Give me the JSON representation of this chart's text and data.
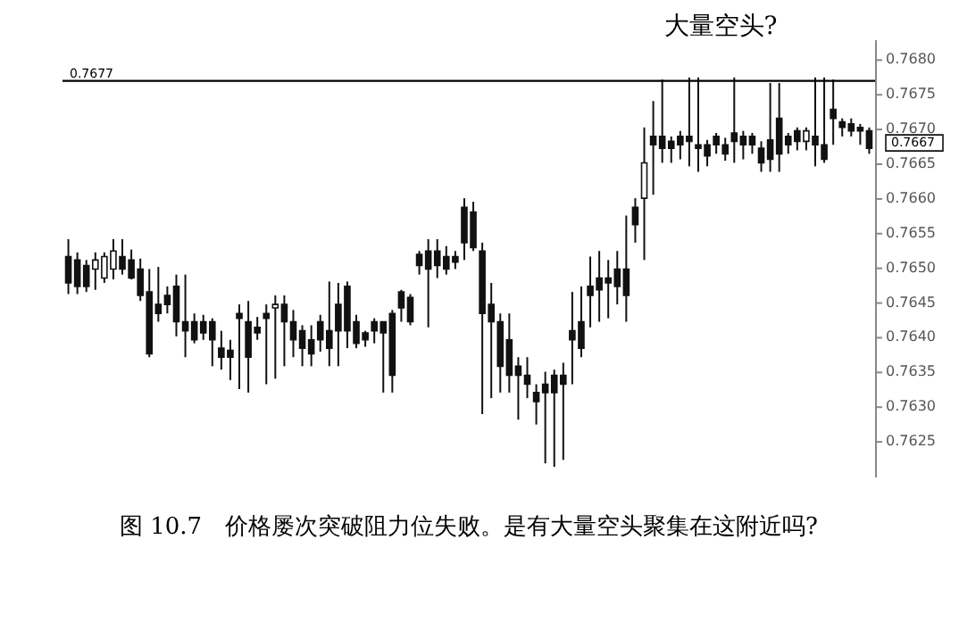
{
  "chart_data": {
    "type": "candlestick",
    "title": "图 10.7　价格屡次突破阻力位失败。是有大量空头聚集在这附近吗?",
    "color": "#111111",
    "categories": [
      null,
      null,
      null,
      null,
      null,
      null,
      null,
      null,
      null,
      null,
      null,
      null,
      null,
      null,
      null,
      null,
      null,
      null,
      null,
      null,
      null,
      null,
      null,
      null,
      null,
      null,
      null,
      null,
      null,
      null,
      null,
      null,
      null,
      null,
      null,
      null,
      null,
      null,
      null,
      null,
      null,
      null,
      null,
      null,
      null,
      null,
      null,
      null,
      null,
      null,
      null,
      null,
      null,
      null,
      null,
      null,
      null,
      null,
      null,
      null,
      null,
      null,
      null,
      null,
      null,
      null,
      null,
      null,
      null,
      null,
      null,
      null,
      null,
      null,
      null,
      null,
      null,
      null,
      null,
      null,
      null,
      null,
      null,
      null,
      null,
      null,
      null,
      null,
      null,
      null
    ],
    "ohlc": [
      [
        0.76517,
        0.76542,
        0.76463,
        0.76479
      ],
      [
        0.76512,
        0.76523,
        0.76463,
        0.76474
      ],
      [
        0.76504,
        0.76512,
        0.76466,
        0.76474
      ],
      [
        0.76499,
        0.76523,
        0.76469,
        0.76512
      ],
      [
        0.76486,
        0.76523,
        0.76479,
        0.76517
      ],
      [
        0.76499,
        0.76542,
        0.76484,
        0.76525
      ],
      [
        0.76517,
        0.76542,
        0.76491,
        0.76499
      ],
      [
        0.76512,
        0.76527,
        0.76484,
        0.76486
      ],
      [
        0.76499,
        0.76514,
        0.76453,
        0.76461
      ],
      [
        0.76466,
        0.76499,
        0.76372,
        0.76377
      ],
      [
        0.76448,
        0.76502,
        0.76423,
        0.76435
      ],
      [
        0.76461,
        0.76474,
        0.76435,
        0.76448
      ],
      [
        0.76474,
        0.76491,
        0.76402,
        0.76423
      ],
      [
        0.76423,
        0.76491,
        0.76372,
        0.7641
      ],
      [
        0.76423,
        0.76435,
        0.76392,
        0.76397
      ],
      [
        0.76423,
        0.76433,
        0.76397,
        0.76407
      ],
      [
        0.76423,
        0.76428,
        0.76359,
        0.76397
      ],
      [
        0.76385,
        0.7641,
        0.76354,
        0.76372
      ],
      [
        0.76382,
        0.76397,
        0.76339,
        0.76372
      ],
      [
        0.76435,
        0.76448,
        0.76326,
        0.76428
      ],
      [
        0.76423,
        0.76453,
        0.76321,
        0.76372
      ],
      [
        0.76415,
        0.7643,
        0.76397,
        0.76407
      ],
      [
        0.76435,
        0.76448,
        0.76333,
        0.76428
      ],
      [
        0.76443,
        0.76461,
        0.76341,
        0.76448
      ],
      [
        0.76448,
        0.76461,
        0.76359,
        0.76423
      ],
      [
        0.76423,
        0.7644,
        0.76372,
        0.76397
      ],
      [
        0.7641,
        0.76418,
        0.76359,
        0.76385
      ],
      [
        0.76397,
        0.76418,
        0.76359,
        0.76377
      ],
      [
        0.76423,
        0.76433,
        0.7638,
        0.76397
      ],
      [
        0.7641,
        0.76481,
        0.76359,
        0.76385
      ],
      [
        0.76448,
        0.76479,
        0.76359,
        0.7641
      ],
      [
        0.76474,
        0.76481,
        0.76385,
        0.7641
      ],
      [
        0.76423,
        0.76433,
        0.76385,
        0.76392
      ],
      [
        0.76407,
        0.7641,
        0.76387,
        0.76397
      ],
      [
        0.76423,
        0.76428,
        0.76392,
        0.7641
      ],
      [
        0.76423,
        0.76423,
        0.76321,
        0.76407
      ],
      [
        0.76435,
        0.7644,
        0.76321,
        0.76346
      ],
      [
        0.76466,
        0.76469,
        0.76423,
        0.76443
      ],
      [
        0.76458,
        0.76463,
        0.76418,
        0.76423
      ],
      [
        0.7652,
        0.76525,
        0.76491,
        0.76504
      ],
      [
        0.76525,
        0.76542,
        0.76415,
        0.76499
      ],
      [
        0.76525,
        0.76542,
        0.76486,
        0.76504
      ],
      [
        0.76517,
        0.76532,
        0.76491,
        0.76499
      ],
      [
        0.76517,
        0.76525,
        0.76499,
        0.76509
      ],
      [
        0.76588,
        0.76601,
        0.76512,
        0.76537
      ],
      [
        0.76581,
        0.76596,
        0.76525,
        0.7653
      ],
      [
        0.76525,
        0.76537,
        0.7629,
        0.76435
      ],
      [
        0.76448,
        0.76479,
        0.76313,
        0.76423
      ],
      [
        0.76423,
        0.76435,
        0.76321,
        0.76359
      ],
      [
        0.76397,
        0.76435,
        0.76321,
        0.76346
      ],
      [
        0.76359,
        0.76372,
        0.76282,
        0.76346
      ],
      [
        0.76346,
        0.76372,
        0.76313,
        0.76333
      ],
      [
        0.76321,
        0.76333,
        0.76275,
        0.76308
      ],
      [
        0.76333,
        0.76351,
        0.76219,
        0.76321
      ],
      [
        0.76346,
        0.76354,
        0.76214,
        0.76321
      ],
      [
        0.76346,
        0.76364,
        0.76224,
        0.76333
      ],
      [
        0.7641,
        0.76466,
        0.76333,
        0.76397
      ],
      [
        0.76423,
        0.76474,
        0.76372,
        0.76385
      ],
      [
        0.76474,
        0.76517,
        0.76415,
        0.76461
      ],
      [
        0.76486,
        0.76525,
        0.76423,
        0.76469
      ],
      [
        0.76486,
        0.76512,
        0.76428,
        0.76479
      ],
      [
        0.76499,
        0.76525,
        0.76448,
        0.76474
      ],
      [
        0.76499,
        0.76576,
        0.76423,
        0.76461
      ],
      [
        0.76588,
        0.76601,
        0.76537,
        0.76563
      ],
      [
        0.76601,
        0.76703,
        0.76512,
        0.76652
      ],
      [
        0.7669,
        0.76741,
        0.76606,
        0.76678
      ],
      [
        0.7669,
        0.76772,
        0.76652,
        0.76673
      ],
      [
        0.76683,
        0.7669,
        0.76652,
        0.76673
      ],
      [
        0.7669,
        0.76698,
        0.76657,
        0.76678
      ],
      [
        0.7669,
        0.76775,
        0.76647,
        0.76683
      ],
      [
        0.76678,
        0.76775,
        0.76639,
        0.76673
      ],
      [
        0.76678,
        0.76685,
        0.76647,
        0.76662
      ],
      [
        0.7669,
        0.76695,
        0.76665,
        0.76678
      ],
      [
        0.76678,
        0.76688,
        0.76655,
        0.76665
      ],
      [
        0.76695,
        0.76775,
        0.76652,
        0.76683
      ],
      [
        0.7669,
        0.76698,
        0.76657,
        0.76678
      ],
      [
        0.7669,
        0.76695,
        0.76665,
        0.76678
      ],
      [
        0.76673,
        0.76683,
        0.76639,
        0.76652
      ],
      [
        0.76685,
        0.76767,
        0.76639,
        0.76657
      ],
      [
        0.76716,
        0.76767,
        0.76639,
        0.76665
      ],
      [
        0.7669,
        0.76695,
        0.76665,
        0.76678
      ],
      [
        0.76698,
        0.76703,
        0.7667,
        0.76683
      ],
      [
        0.76683,
        0.76703,
        0.7667,
        0.76698
      ],
      [
        0.7669,
        0.76775,
        0.76647,
        0.76678
      ],
      [
        0.76678,
        0.76775,
        0.76652,
        0.76657
      ],
      [
        0.76729,
        0.76772,
        0.76678,
        0.76716
      ],
      [
        0.76711,
        0.76716,
        0.7669,
        0.76703
      ],
      [
        0.76708,
        0.76716,
        0.7669,
        0.76698
      ],
      [
        0.76703,
        0.76708,
        0.76678,
        0.76698
      ],
      [
        0.76698,
        0.76703,
        0.76665,
        0.76673
      ]
    ],
    "ylim": [
      0.762,
      0.7683
    ],
    "yticks": [
      0.7625,
      {
        "value": 0.763,
        "label": "0.7630"
      },
      0.7635,
      {
        "value": 0.764,
        "label": "0.7640"
      },
      0.7645,
      {
        "value": 0.765,
        "label": "0.7650"
      },
      0.7655,
      {
        "value": 0.766,
        "label": "0.7660"
      },
      0.7665,
      {
        "value": 0.767,
        "label": "0.7670"
      },
      0.7675,
      {
        "value": 0.768,
        "label": "0.7680"
      }
    ],
    "tick_labels": "y",
    "ref_lines": [
      {
        "axis": "y",
        "value": 0.7677,
        "label": "0.7677"
      }
    ],
    "annotations": [
      "大量空头?",
      "0.7667"
    ]
  }
}
